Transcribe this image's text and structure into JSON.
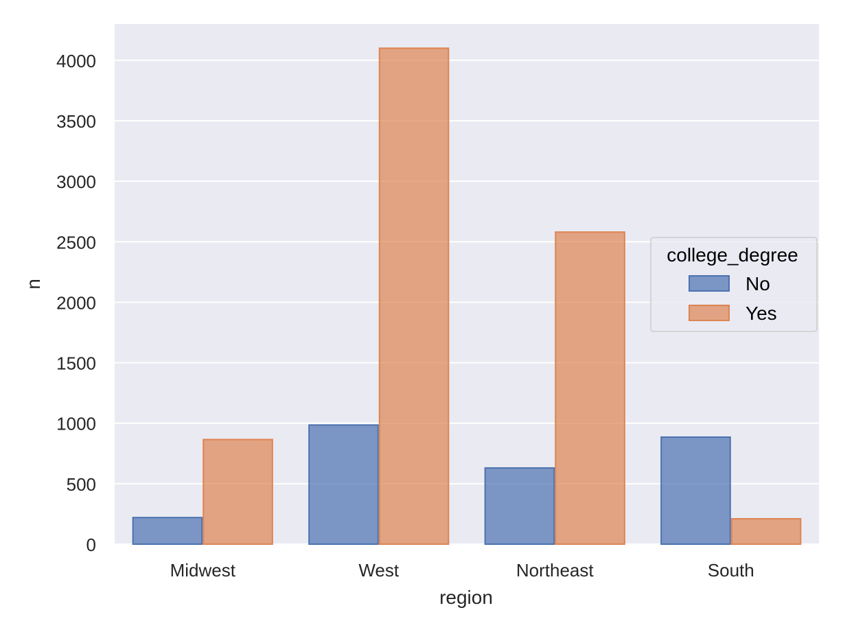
{
  "chart_data": {
    "type": "bar",
    "xlabel": "region",
    "ylabel": "n",
    "categories": [
      "Midwest",
      "West",
      "Northeast",
      "South"
    ],
    "series": [
      {
        "name": "No",
        "values": [
          220,
          985,
          630,
          885
        ],
        "color": "#4c72b0"
      },
      {
        "name": "Yes",
        "values": [
          865,
          4100,
          2580,
          210
        ],
        "color": "#dd8452"
      }
    ],
    "ylim": [
      0,
      4300
    ],
    "yticks": [
      0,
      500,
      1000,
      1500,
      2000,
      2500,
      3000,
      3500,
      4000
    ],
    "grid": true,
    "legend": {
      "title": "college_degree",
      "placement": "center-right"
    },
    "colors": {
      "background": "#eaeaf2",
      "grid": "#ffffff"
    }
  }
}
